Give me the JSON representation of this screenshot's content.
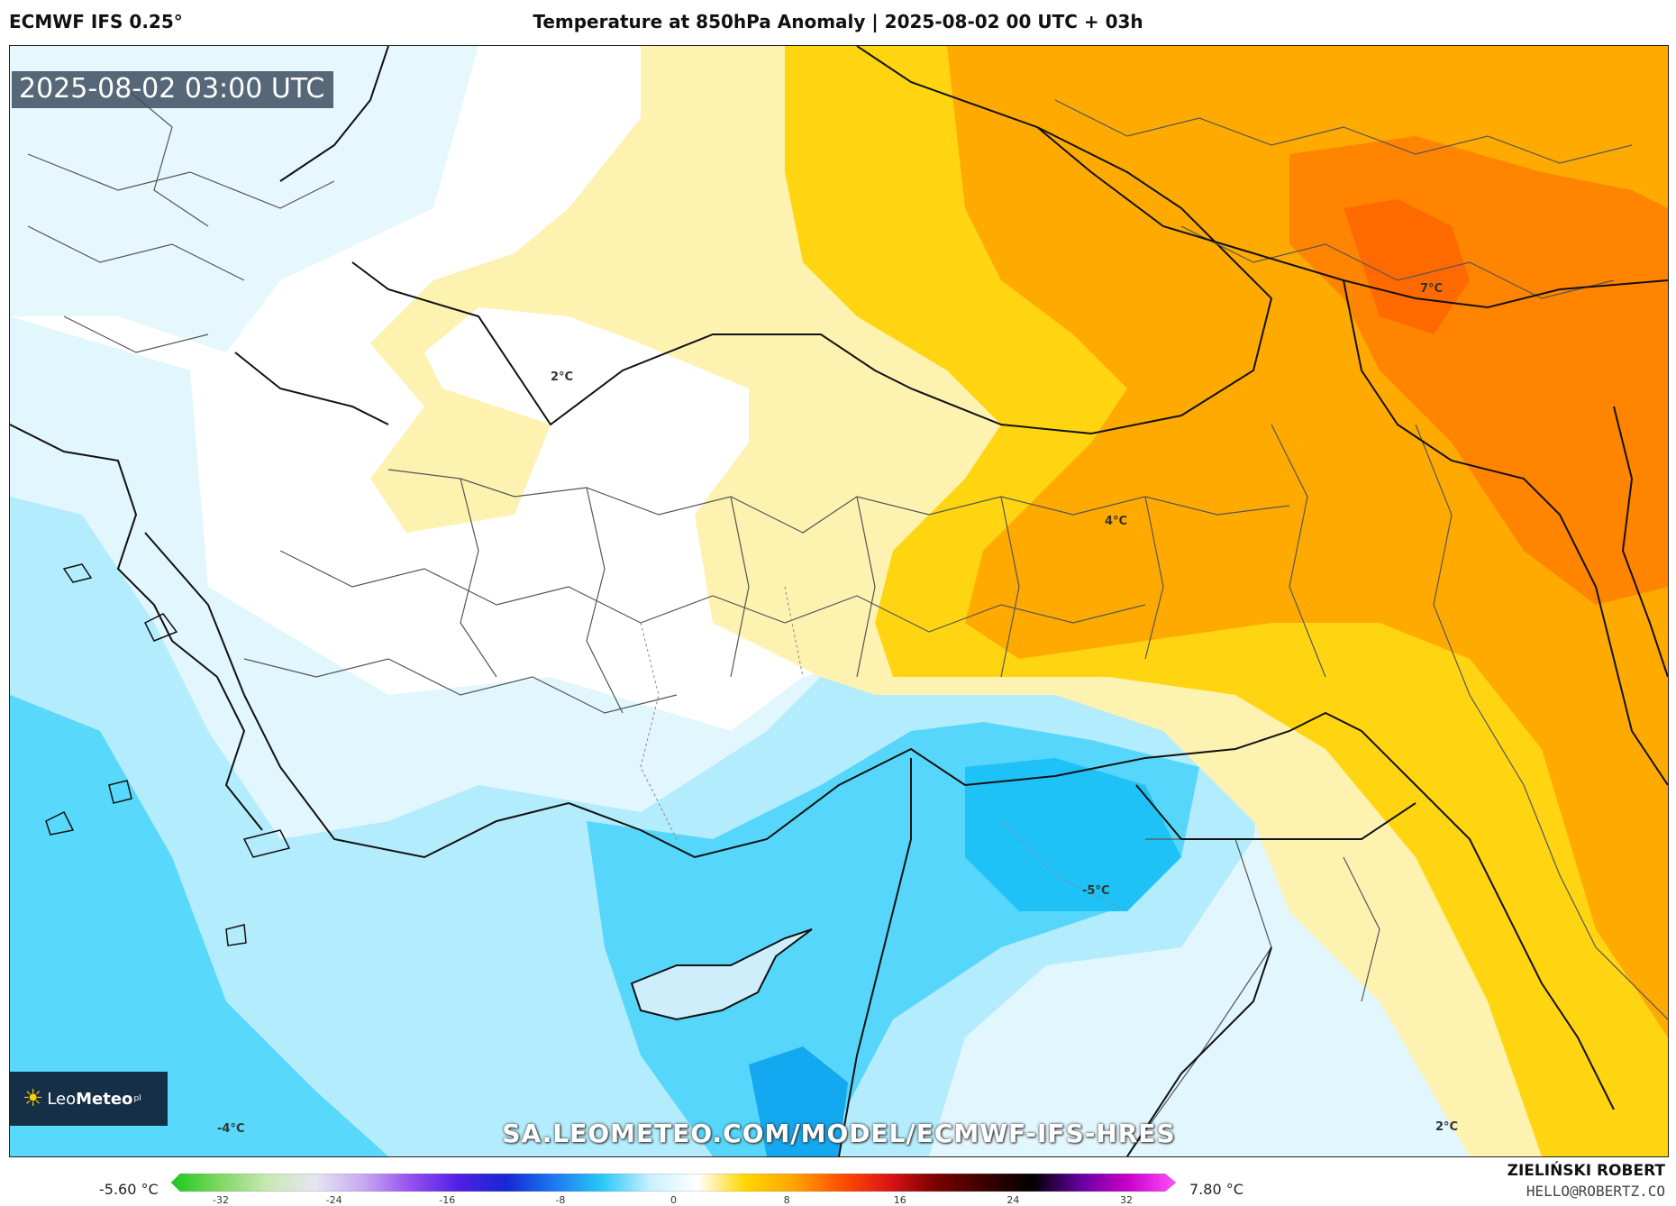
{
  "header": {
    "model": "ECMWF IFS 0.25°",
    "title": "Temperature at 850hPa Anomaly | 2025-08-02 00 UTC + 03h"
  },
  "map": {
    "timestamp": "2025-08-02 03:00 UTC",
    "watermark": "SA.LEOMETEO.COM/MODEL/ECMWF-IFS-HRES",
    "logo": {
      "part1": "Leo",
      "part2": "Meteo",
      "suffix": "pl"
    },
    "labels": [
      "2°C",
      "7°C",
      "4°C",
      "-5°C",
      "-4°C",
      "2°C"
    ]
  },
  "colorbar": {
    "min_label": "-5.60 °C",
    "max_label": "7.80 °C",
    "ticks": [
      "-32",
      "-24",
      "-16",
      "-8",
      "0",
      "8",
      "16",
      "24",
      "32"
    ],
    "stops": [
      "#19c81e",
      "#7ed862",
      "#c8e8b4",
      "#e6e6f0",
      "#c8aaf0",
      "#9650f0",
      "#5020e6",
      "#1428d2",
      "#1e78f0",
      "#28c8f6",
      "#c8f0ff",
      "#ffffff",
      "#ffd700",
      "#ffa500",
      "#ff5000",
      "#dc1414",
      "#780000",
      "#3c0000",
      "#000000",
      "#6400a0",
      "#c800c8",
      "#ff50ff"
    ]
  },
  "credits": {
    "name": "ZIELIŃSKI ROBERT",
    "email": "HELLO@ROBERTZ.CO"
  },
  "colors": {
    "warm_light": "#fdf0a8",
    "warm_yellow": "#ffd400",
    "warm_orange": "#ffa000",
    "warm_dark": "#ff7a00",
    "cold_light": "#dff5fd",
    "cold_mid": "#a8e8fb",
    "cold_strong": "#3fd0f8",
    "cold_deep": "#0aa8f0"
  }
}
